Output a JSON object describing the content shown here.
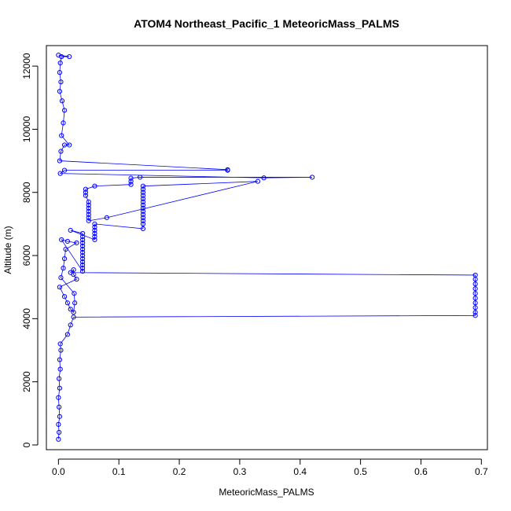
{
  "chart_data": {
    "type": "scatter",
    "title": "ATOM4 Northeast_Pacific_1 MeteoricMass_PALMS",
    "xlabel": "MeteoricMass_PALMS",
    "ylabel": "Altitude (m)",
    "xlim": [
      -0.02,
      0.71
    ],
    "ylim": [
      -150,
      12650
    ],
    "x_ticks": [
      "0.0",
      "0.1",
      "0.2",
      "0.3",
      "0.4",
      "0.5",
      "0.6",
      "0.7"
    ],
    "y_ticks": [
      "0",
      "2000",
      "4000",
      "6000",
      "8000",
      "10000",
      "12000"
    ],
    "grid": false,
    "legend": "none",
    "colors": {
      "series": "#0000ff",
      "axis": "#000000"
    },
    "series": [
      {
        "marker": "open-circle",
        "line": true,
        "points": [
          [
            0.0,
            180
          ],
          [
            0.001,
            400
          ],
          [
            0.0,
            650
          ],
          [
            0.002,
            900
          ],
          [
            0.001,
            1200
          ],
          [
            0.0,
            1500
          ],
          [
            0.002,
            1800
          ],
          [
            0.001,
            2100
          ],
          [
            0.003,
            2400
          ],
          [
            0.002,
            2700
          ],
          [
            0.004,
            3000
          ],
          [
            0.003,
            3200
          ],
          [
            0.015,
            3500
          ],
          [
            0.02,
            3800
          ],
          [
            0.025,
            4050
          ],
          [
            0.69,
            4100
          ],
          [
            0.69,
            4200
          ],
          [
            0.69,
            4350
          ],
          [
            0.69,
            4500
          ],
          [
            0.69,
            4650
          ],
          [
            0.69,
            4800
          ],
          [
            0.69,
            4950
          ],
          [
            0.69,
            5100
          ],
          [
            0.69,
            5250
          ],
          [
            0.69,
            5380
          ],
          [
            0.02,
            5460
          ],
          [
            0.025,
            5550
          ],
          [
            0.025,
            5400
          ],
          [
            0.03,
            5250
          ],
          [
            0.002,
            5000
          ],
          [
            0.01,
            4700
          ],
          [
            0.015,
            4500
          ],
          [
            0.02,
            4300
          ],
          [
            0.025,
            4200
          ],
          [
            0.027,
            4500
          ],
          [
            0.026,
            4800
          ],
          [
            0.004,
            5300
          ],
          [
            0.008,
            5600
          ],
          [
            0.01,
            5900
          ],
          [
            0.012,
            6200
          ],
          [
            0.03,
            6400
          ],
          [
            0.015,
            6450
          ],
          [
            0.005,
            6500
          ],
          [
            0.04,
            5500
          ],
          [
            0.04,
            5800
          ],
          [
            0.04,
            6100
          ],
          [
            0.04,
            6400
          ],
          [
            0.04,
            6700
          ],
          [
            0.02,
            6800
          ],
          [
            0.06,
            6500
          ],
          [
            0.06,
            6700
          ],
          [
            0.06,
            7000
          ],
          [
            0.14,
            6850
          ],
          [
            0.14,
            7000
          ],
          [
            0.14,
            7300
          ],
          [
            0.14,
            7600
          ],
          [
            0.14,
            7900
          ],
          [
            0.14,
            8200
          ],
          [
            0.33,
            8350
          ],
          [
            0.08,
            7200
          ],
          [
            0.05,
            7100
          ],
          [
            0.05,
            7300
          ],
          [
            0.05,
            7500
          ],
          [
            0.05,
            7700
          ],
          [
            0.045,
            7900
          ],
          [
            0.045,
            8100
          ],
          [
            0.06,
            8200
          ],
          [
            0.12,
            8250
          ],
          [
            0.12,
            8350
          ],
          [
            0.12,
            8450
          ],
          [
            0.135,
            8480
          ],
          [
            0.42,
            8480
          ],
          [
            0.34,
            8460
          ],
          [
            0.003,
            8600
          ],
          [
            0.01,
            8700
          ],
          [
            0.28,
            8700
          ],
          [
            0.28,
            8720
          ],
          [
            0.002,
            9000
          ],
          [
            0.004,
            9300
          ],
          [
            0.01,
            9500
          ],
          [
            0.018,
            9500
          ],
          [
            0.005,
            9800
          ],
          [
            0.008,
            10200
          ],
          [
            0.01,
            10600
          ],
          [
            0.006,
            10900
          ],
          [
            0.002,
            11200
          ],
          [
            0.004,
            11500
          ],
          [
            0.002,
            11800
          ],
          [
            0.003,
            12100
          ],
          [
            0.005,
            12300
          ],
          [
            0.018,
            12300
          ],
          [
            0.0,
            12350
          ]
        ]
      }
    ]
  }
}
